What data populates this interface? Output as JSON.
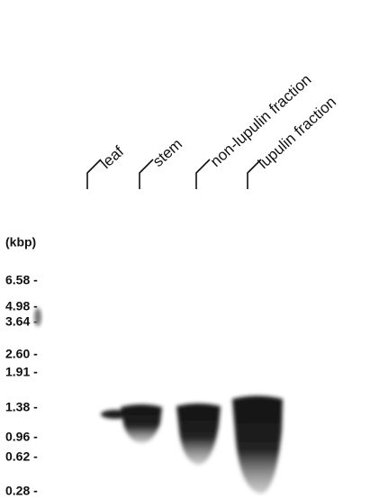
{
  "lanes": [
    "leaf",
    "stem",
    "non-lupulin fraction",
    "lupulin fraction"
  ],
  "unit": "(kbp)",
  "markers": [
    "6.58 -",
    "4.98 -",
    "3.64 -",
    "2.60 -",
    "1.91 -",
    "1.38 -",
    "0.96 -",
    "0.62 -",
    "0.28 -"
  ]
}
